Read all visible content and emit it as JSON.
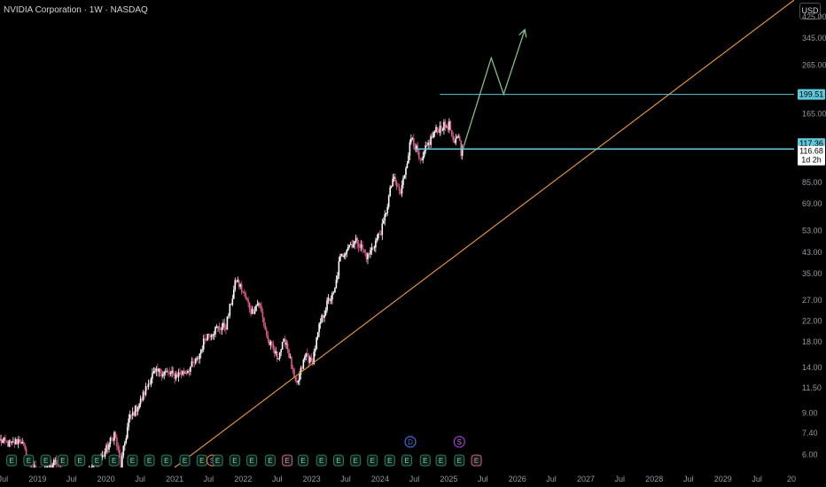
{
  "header": {
    "symbol_title": "NVIDIA Corporation · 1W · NASDAQ",
    "currency": "USD"
  },
  "colors": {
    "background": "#000000",
    "candle_up": "#ffffff",
    "candle_down": "#e05a8c",
    "level_line": "#5fc8d9",
    "trend_line": "#f29b3a",
    "projection": "#7fbf8a",
    "earnings_badge": "#2c7c5f",
    "dividend_badge": "#3b6fe0",
    "split_badge": "#a03bdc"
  },
  "chart_data": {
    "type": "candlestick",
    "title": "NVIDIA Corporation · 1W · NASDAQ",
    "timeframe": "1W",
    "y_scale": "log",
    "ylim": [
      5.3,
      500
    ],
    "xlim": [
      "2018-06-15",
      "2030-01-15"
    ],
    "y_ticks": [
      "6.00",
      "7.40",
      "9.00",
      "11.50",
      "14.00",
      "18.00",
      "22.00",
      "27.00",
      "35.00",
      "43.00",
      "53.00",
      "69.00",
      "85.00",
      "165.00",
      "265.00",
      "345.00",
      "425.00"
    ],
    "x_ticks": [
      {
        "label": "Jul",
        "date": "2018-07-01"
      },
      {
        "label": "2019",
        "date": "2019-01-01"
      },
      {
        "label": "Jul",
        "date": "2019-07-01"
      },
      {
        "label": "2020",
        "date": "2020-01-01"
      },
      {
        "label": "Jul",
        "date": "2020-07-01"
      },
      {
        "label": "2021",
        "date": "2021-01-01"
      },
      {
        "label": "Jul",
        "date": "2021-07-01"
      },
      {
        "label": "2022",
        "date": "2022-01-01"
      },
      {
        "label": "Jul",
        "date": "2022-07-01"
      },
      {
        "label": "2023",
        "date": "2023-01-01"
      },
      {
        "label": "Jul",
        "date": "2023-07-01"
      },
      {
        "label": "2024",
        "date": "2024-01-01"
      },
      {
        "label": "Jul",
        "date": "2024-07-01"
      },
      {
        "label": "2025",
        "date": "2025-01-01"
      },
      {
        "label": "Jul",
        "date": "2025-07-01"
      },
      {
        "label": "2026",
        "date": "2026-01-01"
      },
      {
        "label": "Jul",
        "date": "2026-07-01"
      },
      {
        "label": "2027",
        "date": "2027-01-01"
      },
      {
        "label": "Jul",
        "date": "2027-07-01"
      },
      {
        "label": "2028",
        "date": "2028-01-01"
      },
      {
        "label": "Jul",
        "date": "2028-07-01"
      },
      {
        "label": "2029",
        "date": "2029-01-01"
      },
      {
        "label": "Jul",
        "date": "2029-07-01"
      },
      {
        "label": "20",
        "date": "2030-01-01"
      }
    ],
    "price_path": [
      [
        "2018-06-15",
        6.9
      ],
      [
        "2018-08-15",
        6.6
      ],
      [
        "2018-10-01",
        7.0
      ],
      [
        "2018-11-15",
        5.6
      ],
      [
        "2019-01-01",
        5.0
      ],
      [
        "2019-04-15",
        5.6
      ],
      [
        "2019-06-01",
        4.2
      ],
      [
        "2019-08-15",
        4.6
      ],
      [
        "2019-10-15",
        5.3
      ],
      [
        "2019-12-15",
        5.9
      ],
      [
        "2020-02-15",
        7.4
      ],
      [
        "2020-03-20",
        5.4
      ],
      [
        "2020-05-01",
        8.4
      ],
      [
        "2020-07-01",
        10.0
      ],
      [
        "2020-09-01",
        13.0
      ],
      [
        "2020-10-15",
        13.5
      ],
      [
        "2021-01-01",
        13.0
      ],
      [
        "2021-03-01",
        13.5
      ],
      [
        "2021-05-01",
        15.0
      ],
      [
        "2021-06-15",
        19.0
      ],
      [
        "2021-08-15",
        20.5
      ],
      [
        "2021-10-01",
        21.0
      ],
      [
        "2021-11-25",
        33.0
      ],
      [
        "2022-01-01",
        29.0
      ],
      [
        "2022-02-15",
        24.0
      ],
      [
        "2022-03-25",
        26.5
      ],
      [
        "2022-05-15",
        18.0
      ],
      [
        "2022-07-01",
        15.5
      ],
      [
        "2022-08-15",
        18.5
      ],
      [
        "2022-10-10",
        11.5
      ],
      [
        "2022-12-01",
        16.0
      ],
      [
        "2023-01-01",
        14.5
      ],
      [
        "2023-02-15",
        21.5
      ],
      [
        "2023-04-01",
        27.0
      ],
      [
        "2023-05-01",
        28.5
      ],
      [
        "2023-05-30",
        40.0
      ],
      [
        "2023-07-15",
        46.0
      ],
      [
        "2023-09-01",
        48.0
      ],
      [
        "2023-10-25",
        41.0
      ],
      [
        "2023-12-15",
        49.0
      ],
      [
        "2024-01-15",
        55.0
      ],
      [
        "2024-03-08",
        88.0
      ],
      [
        "2024-04-19",
        76.0
      ],
      [
        "2024-06-18",
        135.0
      ],
      [
        "2024-08-05",
        100.0
      ],
      [
        "2024-09-01",
        118.0
      ],
      [
        "2024-10-15",
        138.0
      ],
      [
        "2024-11-15",
        145.0
      ],
      [
        "2025-01-06",
        148.0
      ],
      [
        "2025-01-27",
        118.0
      ],
      [
        "2025-02-20",
        138.0
      ],
      [
        "2025-03-10",
        110.0
      ],
      [
        "2025-03-17",
        117.36
      ]
    ],
    "horizontal_levels": [
      {
        "price": 199.51,
        "label": "199.51",
        "start": "2024-11-15"
      },
      {
        "price": 117.36,
        "label": "117.36",
        "start": "2024-07-01"
      }
    ],
    "current_price": {
      "price": 117.36,
      "label": "117.36"
    },
    "secondary_label": {
      "price": 116.68,
      "label": "116.68",
      "countdown": "1d 2h"
    },
    "trend_line": [
      [
        "2021-01-01",
        5.3
      ],
      [
        "2030-01-15",
        500
      ]
    ],
    "projection_path": [
      [
        "2025-03-17",
        117.36
      ],
      [
        "2025-08-15",
        285.0
      ],
      [
        "2025-10-20",
        200.0
      ],
      [
        "2026-02-10",
        375.0
      ]
    ],
    "events": [
      {
        "date": "2018-08-16",
        "type": "earnings",
        "label": "E"
      },
      {
        "date": "2018-11-15",
        "type": "earnings",
        "label": "E"
      },
      {
        "date": "2019-02-14",
        "type": "earnings",
        "label": "E"
      },
      {
        "date": "2019-05-16",
        "type": "earnings",
        "label": "E"
      },
      {
        "date": "2019-08-15",
        "type": "earnings",
        "label": "E"
      },
      {
        "date": "2019-11-14",
        "type": "earnings",
        "label": "E"
      },
      {
        "date": "2020-02-13",
        "type": "earnings",
        "label": "E"
      },
      {
        "date": "2020-05-21",
        "type": "earnings",
        "label": "E"
      },
      {
        "date": "2020-08-19",
        "type": "earnings",
        "label": "E"
      },
      {
        "date": "2020-11-18",
        "type": "earnings",
        "label": "E"
      },
      {
        "date": "2021-02-24",
        "type": "earnings",
        "label": "E"
      },
      {
        "date": "2021-05-26",
        "type": "earnings",
        "label": "E"
      },
      {
        "date": "2021-07-20",
        "type": "split",
        "label": "S"
      },
      {
        "date": "2021-08-18",
        "type": "earnings",
        "label": "E"
      },
      {
        "date": "2021-11-17",
        "type": "earnings",
        "label": "E"
      },
      {
        "date": "2022-02-16",
        "type": "earnings",
        "label": "E"
      },
      {
        "date": "2022-05-25",
        "type": "earnings",
        "label": "E"
      },
      {
        "date": "2022-08-24",
        "type": "earnings_miss",
        "label": "E"
      },
      {
        "date": "2022-11-16",
        "type": "earnings",
        "label": "E"
      },
      {
        "date": "2023-02-22",
        "type": "earnings",
        "label": "E"
      },
      {
        "date": "2023-05-24",
        "type": "earnings",
        "label": "E"
      },
      {
        "date": "2023-08-23",
        "type": "earnings",
        "label": "E"
      },
      {
        "date": "2023-11-21",
        "type": "earnings",
        "label": "E"
      },
      {
        "date": "2024-02-21",
        "type": "earnings",
        "label": "E"
      },
      {
        "date": "2024-05-22",
        "type": "earnings",
        "label": "E"
      },
      {
        "date": "2024-06-10",
        "type": "dividend",
        "label": "D"
      },
      {
        "date": "2024-08-28",
        "type": "earnings",
        "label": "E"
      },
      {
        "date": "2024-11-20",
        "type": "earnings",
        "label": "E"
      },
      {
        "date": "2025-02-26",
        "type": "earnings",
        "label": "E"
      },
      {
        "date": "2025-02-26",
        "type": "split_marker",
        "label": "S"
      },
      {
        "date": "2025-05-28",
        "type": "earnings_upcoming",
        "label": "E"
      }
    ]
  }
}
